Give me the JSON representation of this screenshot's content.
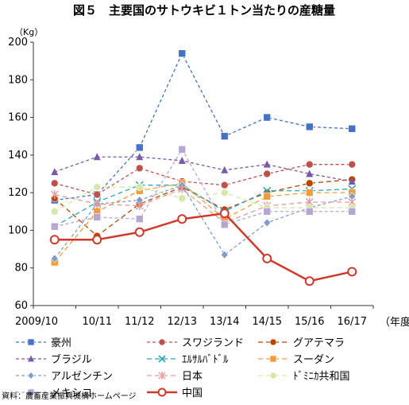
{
  "chart_data": {
    "type": "line",
    "title": "図５　主要国のサトウキビ１トン当たりの産糖量",
    "ylabel": "（Kg）",
    "xlabel": "（年度）",
    "categories": [
      "2009/10",
      "10/11",
      "11/12",
      "12/13",
      "13/14",
      "14/15",
      "15/16",
      "16/17"
    ],
    "ylim": [
      60,
      200
    ],
    "yticks": [
      60,
      80,
      100,
      120,
      140,
      160,
      180,
      200
    ],
    "grid": false,
    "legend_position": "bottom",
    "series": [
      {
        "name": "豪州",
        "color": "#4472c4",
        "marker": "square",
        "dash": "4,3",
        "values": [
          116,
          119,
          144,
          194,
          150,
          160,
          155,
          154
        ]
      },
      {
        "name": "スワジランド",
        "color": "#c0504d",
        "marker": "circle",
        "dash": "4,3",
        "values": [
          125,
          119,
          133,
          126,
          124,
          130,
          135,
          135
        ]
      },
      {
        "name": "グアテマラ",
        "color": "#b84500",
        "marker": "circle",
        "dash": "6,4",
        "values": [
          117,
          97,
          114,
          123,
          111,
          120,
          125,
          127
        ]
      },
      {
        "name": "ブラジル",
        "color": "#7a5aa6",
        "marker": "triangle",
        "dash": "4,3",
        "values": [
          131,
          139,
          139,
          137,
          132,
          135,
          130,
          126
        ]
      },
      {
        "name": "ｴﾙｻﾙﾊﾞﾄﾞﾙ",
        "color": "#2ea6b8",
        "marker": "cross",
        "dash": "6,4",
        "values": [
          102,
          115,
          124,
          124,
          110,
          121,
          121,
          122
        ]
      },
      {
        "name": "スーダン",
        "color": "#f39c3a",
        "marker": "square",
        "dash": "6,4",
        "values": [
          83,
          110,
          121,
          125,
          106,
          118,
          120,
          120
        ]
      },
      {
        "name": "アルゼンチン",
        "color": "#7f9ccf",
        "marker": "diamond",
        "dash": "4,3",
        "values": [
          85,
          114,
          116,
          124,
          87,
          104,
          112,
          118
        ]
      },
      {
        "name": "日本",
        "color": "#e69a9a",
        "marker": "star",
        "dash": "6,4",
        "values": [
          119,
          114,
          113,
          122,
          104,
          113,
          115,
          115
        ]
      },
      {
        "name": "ﾄﾞﾐﾆｶ共和国",
        "color": "#d5e8a8",
        "marker": "circle",
        "dash": "6,4",
        "values": [
          110,
          123,
          123,
          117,
          120,
          112,
          112,
          112
        ]
      },
      {
        "name": "メキシコ",
        "color": "#b7a6d4",
        "marker": "square",
        "dash": "4,3",
        "values": [
          102,
          107,
          106,
          143,
          103,
          110,
          110,
          110
        ]
      },
      {
        "name": "中国",
        "color": "#d13a2b",
        "marker": "circle-open",
        "dash": "",
        "width": 2.5,
        "values": [
          95,
          95,
          99,
          106,
          109,
          85,
          73,
          78
        ]
      }
    ]
  },
  "source": "資料：農畜産業振興機構ホームページ"
}
